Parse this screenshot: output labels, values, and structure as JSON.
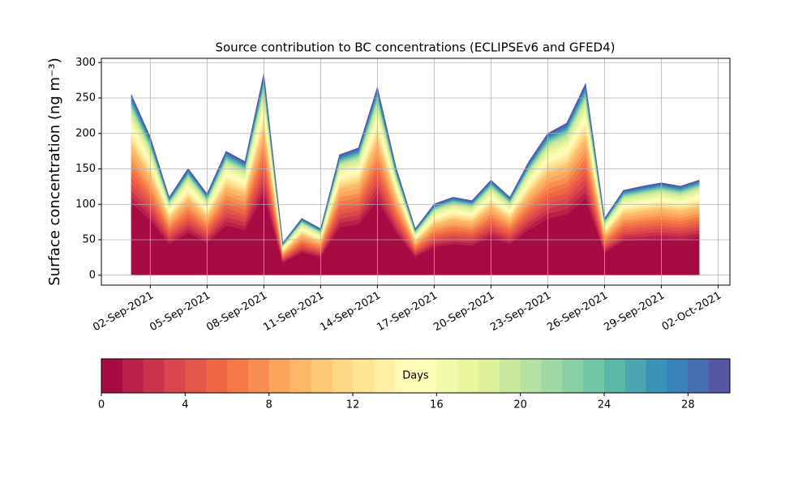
{
  "chart_data": {
    "type": "stacked_area",
    "title": "Source contribution to BC concentrations (ECLIPSEv6 and GFED4)",
    "y_label": "Surface concentration (ng m⁻³)",
    "x": [
      "2021-09-01",
      "2021-09-02",
      "2021-09-03",
      "2021-09-04",
      "2021-09-05",
      "2021-09-06",
      "2021-09-07",
      "2021-09-08",
      "2021-09-09",
      "2021-09-10",
      "2021-09-11",
      "2021-09-12",
      "2021-09-13",
      "2021-09-14",
      "2021-09-15",
      "2021-09-16",
      "2021-09-17",
      "2021-09-18",
      "2021-09-19",
      "2021-09-20",
      "2021-09-21",
      "2021-09-22",
      "2021-09-23",
      "2021-09-24",
      "2021-09-25",
      "2021-09-26",
      "2021-09-27",
      "2021-09-28",
      "2021-09-29",
      "2021-09-30",
      "2021-10-01"
    ],
    "xlim": [
      "2021-08-30T10:00:00",
      "2021-10-02T15:00:00"
    ],
    "xticks": [
      {
        "value": "2021-09-02",
        "label": "02-Sep-2021"
      },
      {
        "value": "2021-09-05",
        "label": "05-Sep-2021"
      },
      {
        "value": "2021-09-08",
        "label": "08-Sep-2021"
      },
      {
        "value": "2021-09-11",
        "label": "11-Sep-2021"
      },
      {
        "value": "2021-09-14",
        "label": "14-Sep-2021"
      },
      {
        "value": "2021-09-17",
        "label": "17-Sep-2021"
      },
      {
        "value": "2021-09-20",
        "label": "20-Sep-2021"
      },
      {
        "value": "2021-09-23",
        "label": "23-Sep-2021"
      },
      {
        "value": "2021-09-26",
        "label": "26-Sep-2021"
      },
      {
        "value": "2021-09-29",
        "label": "29-Sep-2021"
      },
      {
        "value": "2021-10-02",
        "label": "02-Oct-2021"
      }
    ],
    "ylim": [
      -14,
      306
    ],
    "yticks": [
      0,
      50,
      100,
      150,
      200,
      250,
      300
    ],
    "grid": true,
    "series": [
      {
        "color": "#a70b44",
        "values": [
          102,
          78,
          44,
          60,
          46,
          70,
          64,
          114,
          18,
          32,
          26,
          68,
          72,
          106,
          60,
          26,
          40,
          44,
          42,
          54,
          44,
          64,
          80,
          86,
          108,
          32,
          48,
          50,
          52,
          50,
          54
        ]
      },
      {
        "color": "#b91f48",
        "values": [
          8.9,
          6.8,
          3.9,
          5.3,
          4,
          6.1,
          5.6,
          10,
          1.6,
          2.8,
          2.3,
          6,
          6.3,
          9.3,
          5.3,
          2.3,
          3.5,
          3.9,
          3.7,
          4.7,
          3.9,
          5.6,
          7,
          7.5,
          9.5,
          2.8,
          4.2,
          4.4,
          4.6,
          4.4,
          4.7
        ]
      },
      {
        "color": "#cb334d",
        "values": [
          8.9,
          6.8,
          3.9,
          5.3,
          4,
          6.1,
          5.6,
          10,
          1.6,
          2.8,
          2.3,
          6,
          6.3,
          9.3,
          5.3,
          2.3,
          3.5,
          3.9,
          3.7,
          4.7,
          3.9,
          5.6,
          7,
          7.5,
          9.5,
          2.8,
          4.2,
          4.4,
          4.6,
          4.4,
          4.7
        ]
      },
      {
        "color": "#da464d",
        "values": [
          8.9,
          6.8,
          3.9,
          5.3,
          4,
          6.1,
          5.6,
          10,
          1.6,
          2.8,
          2.3,
          6,
          6.3,
          9.3,
          5.3,
          2.3,
          3.5,
          3.9,
          3.7,
          4.7,
          3.9,
          5.6,
          7,
          7.5,
          9.5,
          2.8,
          4.2,
          4.4,
          4.6,
          4.4,
          4.7
        ]
      },
      {
        "color": "#e4554a",
        "values": [
          8.9,
          6.8,
          3.9,
          5.3,
          4,
          6.1,
          5.6,
          10,
          1.6,
          2.8,
          2.3,
          6,
          6.3,
          9.3,
          5.3,
          2.3,
          3.5,
          3.9,
          3.7,
          4.7,
          3.9,
          5.6,
          7,
          7.5,
          9.5,
          2.8,
          4.2,
          4.4,
          4.6,
          4.4,
          4.7
        ]
      },
      {
        "color": "#ef6645",
        "values": [
          8.9,
          6.8,
          3.9,
          5.3,
          4,
          6.1,
          5.6,
          10,
          1.6,
          2.8,
          2.3,
          6,
          6.3,
          9.3,
          5.3,
          2.3,
          3.5,
          3.9,
          3.7,
          4.7,
          3.9,
          5.6,
          7,
          7.5,
          9.5,
          2.8,
          4.2,
          4.4,
          4.6,
          4.4,
          4.7
        ]
      },
      {
        "color": "#f57847",
        "values": [
          8.9,
          6.8,
          3.9,
          5.3,
          4,
          6.1,
          5.6,
          10,
          1.6,
          2.8,
          2.3,
          6,
          6.3,
          9.3,
          5.3,
          2.3,
          3.5,
          3.9,
          3.7,
          4.7,
          3.9,
          5.6,
          7,
          7.5,
          9.5,
          2.8,
          4.2,
          4.4,
          4.6,
          4.4,
          4.7
        ]
      },
      {
        "color": "#f98e52",
        "values": [
          8.9,
          6.8,
          3.9,
          5.3,
          4,
          6.1,
          5.6,
          10,
          1.6,
          2.8,
          2.3,
          6,
          6.3,
          9.3,
          5.3,
          2.3,
          3.5,
          3.9,
          3.7,
          4.7,
          3.9,
          5.6,
          7,
          7.5,
          9.5,
          2.8,
          4.2,
          4.4,
          4.6,
          4.4,
          4.7
        ]
      },
      {
        "color": "#fca55d",
        "values": [
          8.9,
          6.8,
          3.9,
          5.3,
          4,
          6.1,
          5.6,
          10,
          1.6,
          2.8,
          2.3,
          6,
          6.3,
          9.3,
          5.3,
          2.3,
          3.5,
          3.9,
          3.7,
          4.7,
          3.9,
          5.6,
          7,
          7.5,
          9.5,
          2.8,
          4.2,
          4.4,
          4.6,
          4.4,
          4.7
        ]
      },
      {
        "color": "#fdb768",
        "values": [
          8.9,
          6.8,
          3.9,
          5.3,
          4,
          6.1,
          5.6,
          10,
          1.6,
          2.8,
          2.3,
          6,
          6.3,
          9.3,
          5.3,
          2.3,
          3.5,
          3.9,
          3.7,
          4.7,
          3.9,
          5.6,
          7,
          7.5,
          9.5,
          2.8,
          4.2,
          4.4,
          4.6,
          4.4,
          4.7
        ]
      },
      {
        "color": "#fdc776",
        "values": [
          5.1,
          3.9,
          2.2,
          3,
          2.3,
          3.5,
          3.2,
          5.7,
          0.9,
          1.6,
          1.3,
          3.4,
          3.6,
          5.3,
          3,
          1.3,
          2,
          2.2,
          2.1,
          2.7,
          2.2,
          3.2,
          4,
          4.3,
          5.4,
          1.6,
          2.4,
          2.5,
          2.6,
          2.5,
          2.7
        ]
      },
      {
        "color": "#fed884",
        "values": [
          5.1,
          3.9,
          2.2,
          3,
          2.3,
          3.5,
          3.2,
          5.7,
          0.9,
          1.6,
          1.3,
          3.4,
          3.6,
          5.3,
          3,
          1.3,
          2,
          2.2,
          2.1,
          2.7,
          2.2,
          3.2,
          4,
          4.3,
          5.4,
          1.6,
          2.4,
          2.5,
          2.6,
          2.5,
          2.7
        ]
      },
      {
        "color": "#fee593",
        "values": [
          5.1,
          3.9,
          2.2,
          3,
          2.3,
          3.5,
          3.2,
          5.7,
          0.9,
          1.6,
          1.3,
          3.4,
          3.6,
          5.3,
          3,
          1.3,
          2,
          2.2,
          2.1,
          2.7,
          2.2,
          3.2,
          4,
          4.3,
          5.4,
          1.6,
          2.4,
          2.5,
          2.6,
          2.5,
          2.7
        ]
      },
      {
        "color": "#feefa5",
        "values": [
          5.1,
          3.9,
          2.2,
          3,
          2.3,
          3.5,
          3.2,
          5.7,
          0.9,
          1.6,
          1.3,
          3.4,
          3.6,
          5.3,
          3,
          1.3,
          2,
          2.2,
          2.1,
          2.7,
          2.2,
          3.2,
          4,
          4.3,
          5.4,
          1.6,
          2.4,
          2.5,
          2.6,
          2.5,
          2.7
        ]
      },
      {
        "color": "#fffab8",
        "values": [
          5.1,
          3.9,
          2.2,
          3,
          2.3,
          3.5,
          3.2,
          5.7,
          0.9,
          1.6,
          1.3,
          3.4,
          3.6,
          5.3,
          3,
          1.3,
          2,
          2.2,
          2.1,
          2.7,
          2.2,
          3.2,
          4,
          4.3,
          5.4,
          1.6,
          2.4,
          2.5,
          2.6,
          2.5,
          2.7
        ]
      },
      {
        "color": "#fbfdb9",
        "values": [
          5.1,
          3.9,
          2.2,
          3,
          2.3,
          3.5,
          3.2,
          5.7,
          0.9,
          1.6,
          1.3,
          3.4,
          3.6,
          5.3,
          3,
          1.3,
          2,
          2.2,
          2.1,
          2.7,
          2.2,
          3.2,
          4,
          4.3,
          5.4,
          1.6,
          2.4,
          2.5,
          2.6,
          2.5,
          2.7
        ]
      },
      {
        "color": "#f2faac",
        "values": [
          5.1,
          3.9,
          2.2,
          3,
          2.3,
          3.5,
          3.2,
          5.7,
          0.9,
          1.6,
          1.3,
          3.4,
          3.6,
          5.3,
          3,
          1.3,
          2,
          2.2,
          2.1,
          2.7,
          2.2,
          3.2,
          4,
          4.3,
          5.4,
          1.6,
          2.4,
          2.5,
          2.6,
          2.5,
          2.7
        ]
      },
      {
        "color": "#e9f69e",
        "values": [
          5.1,
          3.9,
          2.2,
          3,
          2.3,
          3.5,
          3.2,
          5.7,
          0.9,
          1.6,
          1.3,
          3.4,
          3.6,
          5.3,
          3,
          1.3,
          2,
          2.2,
          2.1,
          2.7,
          2.2,
          3.2,
          4,
          4.3,
          5.4,
          1.6,
          2.4,
          2.5,
          2.6,
          2.5,
          2.7
        ]
      },
      {
        "color": "#dcf199",
        "values": [
          5.1,
          3.9,
          2.2,
          3,
          2.3,
          3.5,
          3.2,
          5.7,
          0.9,
          1.6,
          1.3,
          3.4,
          3.6,
          5.3,
          3,
          1.3,
          2,
          2.2,
          2.1,
          2.7,
          2.2,
          3.2,
          4,
          4.3,
          5.4,
          1.6,
          2.4,
          2.5,
          2.6,
          2.5,
          2.7
        ]
      },
      {
        "color": "#c8e89e",
        "values": [
          5.1,
          3.9,
          2.2,
          3,
          2.3,
          3.5,
          3.2,
          5.7,
          0.9,
          1.6,
          1.3,
          3.4,
          3.6,
          5.3,
          3,
          1.3,
          2,
          2.2,
          2.1,
          2.7,
          2.2,
          3.2,
          4,
          4.3,
          5.4,
          1.6,
          2.4,
          2.5,
          2.6,
          2.5,
          2.7
        ]
      },
      {
        "color": "#b5e1a2",
        "values": [
          2.2,
          1.7,
          0.9,
          1.3,
          1,
          1.5,
          1.4,
          2.4,
          0.4,
          0.7,
          0.6,
          1.4,
          1.5,
          2.3,
          1.3,
          0.6,
          0.9,
          0.9,
          0.9,
          1.1,
          0.9,
          1.4,
          1.7,
          1.8,
          2.3,
          0.7,
          1,
          1.1,
          1.1,
          1.1,
          1.1
        ]
      },
      {
        "color": "#a0d9a4",
        "values": [
          2.2,
          1.7,
          0.9,
          1.3,
          1,
          1.5,
          1.4,
          2.4,
          0.4,
          0.7,
          0.6,
          1.4,
          1.5,
          2.3,
          1.3,
          0.6,
          0.9,
          0.9,
          0.9,
          1.1,
          0.9,
          1.4,
          1.7,
          1.8,
          2.3,
          0.7,
          1,
          1.1,
          1.1,
          1.1,
          1.1
        ]
      },
      {
        "color": "#88cfa4",
        "values": [
          2.2,
          1.7,
          0.9,
          1.3,
          1,
          1.5,
          1.4,
          2.4,
          0.4,
          0.7,
          0.6,
          1.4,
          1.5,
          2.3,
          1.3,
          0.6,
          0.9,
          0.9,
          0.9,
          1.1,
          0.9,
          1.4,
          1.7,
          1.8,
          2.3,
          0.7,
          1,
          1.1,
          1.1,
          1.1,
          1.1
        ]
      },
      {
        "color": "#71c6a5",
        "values": [
          2.2,
          1.7,
          0.9,
          1.3,
          1,
          1.5,
          1.4,
          2.4,
          0.4,
          0.7,
          0.6,
          1.4,
          1.5,
          2.3,
          1.3,
          0.6,
          0.9,
          0.9,
          0.9,
          1.1,
          0.9,
          1.4,
          1.7,
          1.8,
          2.3,
          0.7,
          1,
          1.1,
          1.1,
          1.1,
          1.1
        ]
      },
      {
        "color": "#5db7a9",
        "values": [
          2.2,
          1.7,
          0.9,
          1.3,
          1,
          1.5,
          1.4,
          2.4,
          0.4,
          0.7,
          0.6,
          1.4,
          1.5,
          2.3,
          1.3,
          0.6,
          0.9,
          0.9,
          0.9,
          1.1,
          0.9,
          1.4,
          1.7,
          1.8,
          2.3,
          0.7,
          1,
          1.1,
          1.1,
          1.1,
          1.1
        ]
      },
      {
        "color": "#4ca5b1",
        "values": [
          2.2,
          1.7,
          0.9,
          1.3,
          1,
          1.5,
          1.4,
          2.4,
          0.4,
          0.7,
          0.6,
          1.4,
          1.5,
          2.3,
          1.3,
          0.6,
          0.9,
          0.9,
          0.9,
          1.1,
          0.9,
          1.4,
          1.7,
          1.8,
          2.3,
          0.7,
          1,
          1.1,
          1.1,
          1.1,
          1.1
        ]
      },
      {
        "color": "#3b92b9",
        "values": [
          2.2,
          1.7,
          0.9,
          1.3,
          1,
          1.5,
          1.4,
          2.4,
          0.4,
          0.7,
          0.6,
          1.4,
          1.5,
          2.3,
          1.3,
          0.6,
          0.9,
          0.9,
          0.9,
          1.1,
          0.9,
          1.4,
          1.7,
          1.8,
          2.3,
          0.7,
          1,
          1.1,
          1.1,
          1.1,
          1.1
        ]
      },
      {
        "color": "#3981ba",
        "values": [
          2.2,
          1.7,
          0.9,
          1.3,
          1,
          1.5,
          1.4,
          2.4,
          0.4,
          0.7,
          0.6,
          1.4,
          1.5,
          2.3,
          1.3,
          0.6,
          0.9,
          0.9,
          0.9,
          1.1,
          0.9,
          1.4,
          1.7,
          1.8,
          2.3,
          0.7,
          1,
          1.1,
          1.1,
          1.1,
          1.1
        ]
      },
      {
        "color": "#486cb0",
        "values": [
          2.2,
          1.7,
          0.9,
          1.3,
          1,
          1.5,
          1.4,
          2.4,
          0.4,
          0.7,
          0.6,
          1.4,
          1.5,
          2.3,
          1.3,
          0.6,
          0.9,
          0.9,
          0.9,
          1.1,
          0.9,
          1.4,
          1.7,
          1.8,
          2.3,
          0.7,
          1,
          1.1,
          1.1,
          1.1,
          1.1
        ]
      },
      {
        "color": "#5756a5",
        "values": [
          2.2,
          1.7,
          0.9,
          1.3,
          1,
          1.5,
          1.4,
          2.4,
          0.4,
          0.7,
          0.6,
          1.4,
          1.5,
          2.3,
          1.3,
          0.6,
          0.9,
          0.9,
          0.9,
          1.1,
          0.9,
          1.4,
          1.7,
          1.8,
          2.3,
          0.7,
          1,
          1.1,
          1.1,
          1.1,
          1.1
        ]
      }
    ],
    "colorbar": {
      "label": "Days",
      "lim": [
        0,
        30
      ],
      "ticks": [
        0,
        4,
        8,
        12,
        16,
        20,
        24,
        28
      ]
    }
  }
}
